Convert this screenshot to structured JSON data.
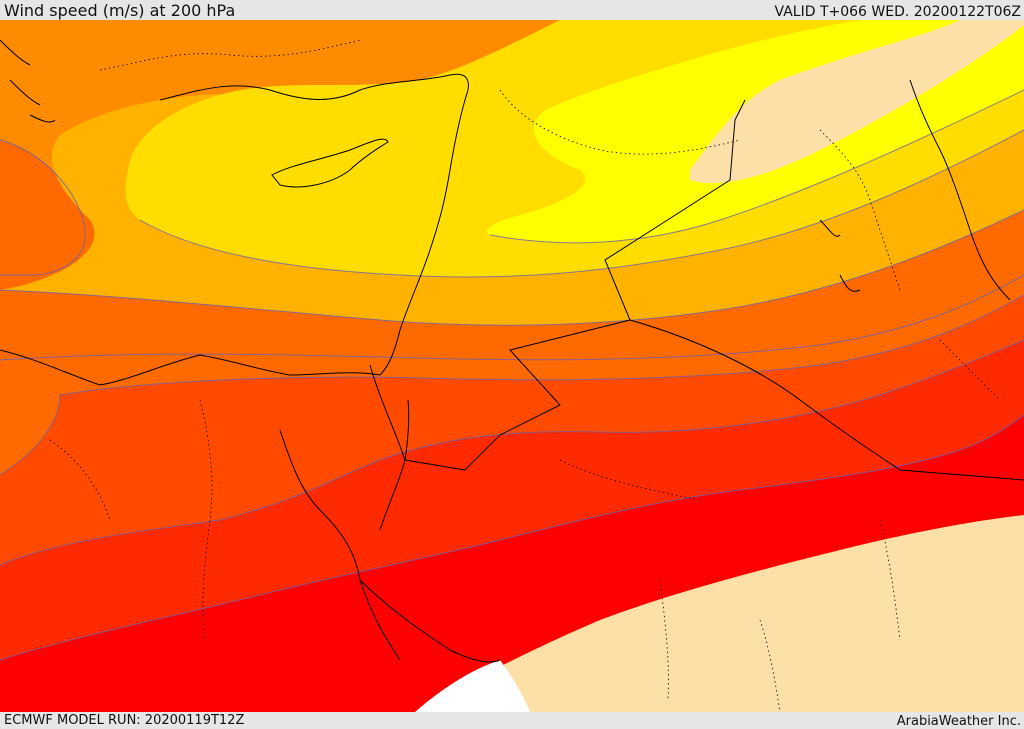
{
  "header": {
    "title": "Wind speed (m/s) at 200 hPa",
    "valid": "VALID T+066 WED. 20200122T06Z"
  },
  "footer": {
    "model_run": "ECMWF MODEL RUN: 20200119T12Z",
    "credit": "ArabiaWeather Inc."
  },
  "map": {
    "field": "wind-speed",
    "colors": {
      "background_calm": "#fde0a8",
      "yellow": "#ffff00",
      "gold": "#ffdd00",
      "amber": "#ffb300",
      "orange": "#ff8c00",
      "dark_orange": "#ff6600",
      "orange_red": "#ff4a00",
      "red_orange": "#ff2a00",
      "red": "#ff0000",
      "land_outline": "#000000",
      "contour_line": "#6a5fb0"
    }
  }
}
